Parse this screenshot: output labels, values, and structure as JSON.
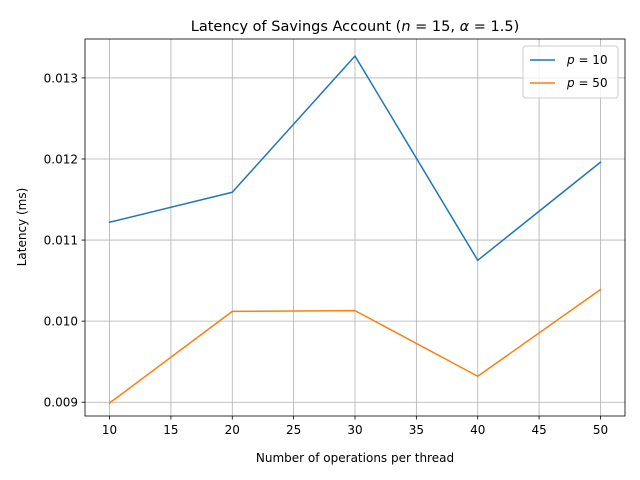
{
  "chart_data": {
    "type": "line",
    "title": "Latency of Savings Account (n = 15, α = 1.5)",
    "title_parts": {
      "prefix": "Latency of Savings Account (",
      "n_symbol": "n",
      "n_value": " = 15, ",
      "alpha_symbol": "α",
      "alpha_value": " = 1.5)"
    },
    "xlabel": "Number of operations per thread",
    "ylabel": "Latency (ms)",
    "x": [
      10,
      20,
      30,
      40,
      50
    ],
    "xlim": [
      8,
      52
    ],
    "ylim": [
      0.00883,
      0.01348
    ],
    "xticks": [
      10,
      15,
      20,
      25,
      30,
      35,
      40,
      45,
      50
    ],
    "yticks": [
      0.009,
      0.01,
      0.011,
      0.012,
      0.013
    ],
    "ytick_labels": [
      "0.009",
      "0.010",
      "0.011",
      "0.012",
      "0.013"
    ],
    "grid": true,
    "legend_position": "top-right",
    "series": [
      {
        "name": "p = 10",
        "symbol": "p",
        "value_text": " = 10",
        "color": "#1f77b4",
        "values": [
          0.01122,
          0.01159,
          0.01327,
          0.01075,
          0.01196
        ]
      },
      {
        "name": "p = 50",
        "symbol": "p",
        "value_text": " = 50",
        "color": "#ff7f0e",
        "values": [
          0.00899,
          0.01012,
          0.01013,
          0.00932,
          0.01039
        ]
      }
    ]
  }
}
